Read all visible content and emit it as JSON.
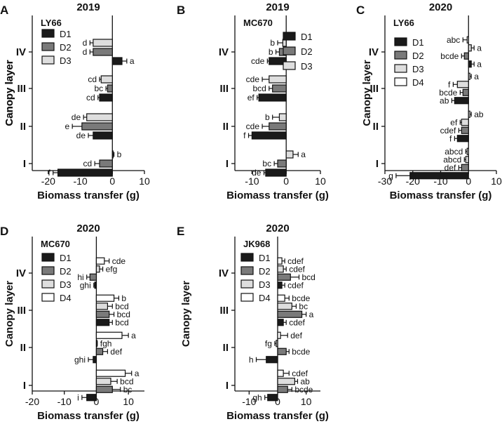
{
  "colors": {
    "D1": "#1a1a1a",
    "D2": "#7a7a7a",
    "D3": "#dedede",
    "D4": "#ffffff",
    "edge": "#111111"
  },
  "chart_data": [
    {
      "panel": "A",
      "year": "2019",
      "cultivar": "LY66",
      "type": "bar",
      "orientation": "horizontal",
      "xlabel": "Biomass transfer (g)",
      "ylabel": "Canopy layer",
      "xlim": [
        -25,
        10
      ],
      "xticks": [
        -20,
        -10,
        0,
        10
      ],
      "categories": [
        "IV",
        "III",
        "II",
        "I"
      ],
      "series": [
        {
          "name": "D1",
          "values": [
            3,
            -4,
            -6,
            -17
          ],
          "errors": [
            1.5,
            0.5,
            1.5,
            1.5
          ],
          "letters": [
            "a",
            "cd",
            "de",
            "f"
          ]
        },
        {
          "name": "D2",
          "values": [
            -6,
            -1.5,
            -9.5,
            -4
          ],
          "errors": [
            1,
            0.5,
            3,
            1.5
          ],
          "letters": [
            "d",
            "bc",
            "e",
            "cd"
          ]
        },
        {
          "name": "D3",
          "values": [
            -6,
            -3.5,
            -8,
            0.2
          ],
          "errors": [
            1,
            0.5,
            1,
            0.3
          ],
          "letters": [
            "d",
            "cd",
            "de",
            "b"
          ]
        }
      ]
    },
    {
      "panel": "B",
      "year": "2019",
      "cultivar": "MC670",
      "type": "bar",
      "orientation": "horizontal",
      "xlabel": "Biomass transfer (g)",
      "ylabel": "Canopy layer",
      "xlim": [
        -15,
        10
      ],
      "xticks": [
        -10,
        0,
        10
      ],
      "categories": [
        "IV",
        "III",
        "II",
        "I"
      ],
      "series": [
        {
          "name": "D1",
          "values": [
            -5,
            -8,
            -10,
            -6
          ],
          "errors": [
            0.5,
            0.5,
            1,
            0.5
          ],
          "letters": [
            "cde",
            "ef",
            "f",
            "de"
          ]
        },
        {
          "name": "D2",
          "values": [
            -2,
            -4,
            -5,
            -2.5
          ],
          "errors": [
            1,
            1,
            2,
            1
          ],
          "letters": [
            "b",
            "bcd",
            "cde",
            "bc"
          ]
        },
        {
          "name": "D3",
          "values": [
            -1,
            -5,
            -2,
            2
          ],
          "errors": [
            1.5,
            2,
            2,
            1.5
          ],
          "letters": [
            "b",
            "cde",
            "b",
            "a"
          ]
        }
      ]
    },
    {
      "panel": "C",
      "year": "2020",
      "cultivar": "LY66",
      "type": "bar",
      "orientation": "horizontal",
      "xlabel": "Biomass transfer (g)",
      "ylabel": "Canopy layer",
      "xlim": [
        -30,
        10
      ],
      "xticks": [
        -30,
        -20,
        -10,
        0,
        10
      ],
      "categories": [
        "IV",
        "III",
        "II",
        "I"
      ],
      "series": [
        {
          "name": "D1",
          "values": [
            1,
            -5,
            -4,
            -21
          ],
          "errors": [
            1,
            1,
            1,
            5
          ],
          "letters": [
            "a",
            "ab",
            "f",
            "g"
          ]
        },
        {
          "name": "D2",
          "values": [
            -1.5,
            -2,
            -2.5,
            -2.5
          ],
          "errors": [
            1,
            1,
            1,
            1
          ],
          "letters": [
            "bcde",
            "bcde",
            "cdef",
            "def"
          ]
        },
        {
          "name": "D3",
          "values": [
            1,
            -4,
            -2.5,
            -1
          ],
          "errors": [
            1,
            1.5,
            0.5,
            0.5
          ],
          "letters": [
            "a",
            "f",
            "ef",
            "abcd"
          ]
        },
        {
          "name": "D4",
          "values": [
            -0.5,
            0.5,
            0.5,
            -0.5
          ],
          "errors": [
            1.5,
            0.5,
            0.5,
            0.5
          ],
          "letters": [
            "abc",
            "a",
            "ab",
            "abcd"
          ]
        }
      ]
    },
    {
      "panel": "D",
      "year": "2020",
      "cultivar": "MC670",
      "type": "bar",
      "orientation": "horizontal",
      "xlabel": "Biomass transfer (g)",
      "ylabel": "Canopy layer",
      "xlim": [
        -20,
        15
      ],
      "xticks": [
        -20,
        -10,
        0,
        10
      ],
      "categories": [
        "IV",
        "III",
        "II",
        "I"
      ],
      "series": [
        {
          "name": "D1",
          "values": [
            -0.5,
            4,
            -1,
            -3
          ],
          "errors": [
            0.3,
            1,
            1.5,
            1.5
          ],
          "letters": [
            "ghi",
            "bcd",
            "ghi",
            "i"
          ]
        },
        {
          "name": "D2",
          "values": [
            -2,
            4,
            2,
            5
          ],
          "errors": [
            1,
            1.5,
            1.5,
            2.5
          ],
          "letters": [
            "hi",
            "bcd",
            "def",
            "bc"
          ]
        },
        {
          "name": "D3",
          "values": [
            1,
            3.5,
            0,
            4.5
          ],
          "errors": [
            1,
            1.5,
            0.3,
            2
          ],
          "letters": [
            "efg",
            "bcd",
            "fgh",
            "bcd"
          ]
        },
        {
          "name": "D4",
          "values": [
            2.5,
            5.5,
            8,
            9
          ],
          "errors": [
            1.5,
            1.5,
            2,
            2
          ],
          "letters": [
            "cde",
            "b",
            "a",
            "a"
          ]
        }
      ]
    },
    {
      "panel": "E",
      "year": "2020",
      "cultivar": "JK968",
      "type": "bar",
      "orientation": "horizontal",
      "xlabel": "Biomass transfer (g)",
      "ylabel": "Canopy layer",
      "xlim": [
        -15,
        15
      ],
      "xticks": [
        -10,
        0,
        10
      ],
      "categories": [
        "IV",
        "III",
        "II",
        "I"
      ],
      "series": [
        {
          "name": "D1",
          "values": [
            1.5,
            2,
            -4,
            -3.5
          ],
          "errors": [
            1,
            1,
            3.5,
            1
          ],
          "letters": [
            "cdef",
            "cdef",
            "h",
            "gh"
          ]
        },
        {
          "name": "D2",
          "values": [
            4.5,
            8.5,
            3,
            3.5
          ],
          "errors": [
            3,
            1.5,
            1,
            1.5
          ],
          "letters": [
            "bcd",
            "a",
            "bcde",
            "bcde"
          ]
        },
        {
          "name": "D3",
          "values": [
            2,
            5,
            -0.5,
            6
          ],
          "errors": [
            1,
            1.5,
            0.5,
            1
          ],
          "letters": [
            "cdef",
            "bc",
            "fg",
            "ab"
          ]
        },
        {
          "name": "D4",
          "values": [
            1.5,
            2.5,
            1,
            2
          ],
          "errors": [
            1,
            1.5,
            2.5,
            2
          ],
          "letters": [
            "cdef",
            "bcde",
            "def",
            "cdef"
          ]
        }
      ]
    }
  ]
}
